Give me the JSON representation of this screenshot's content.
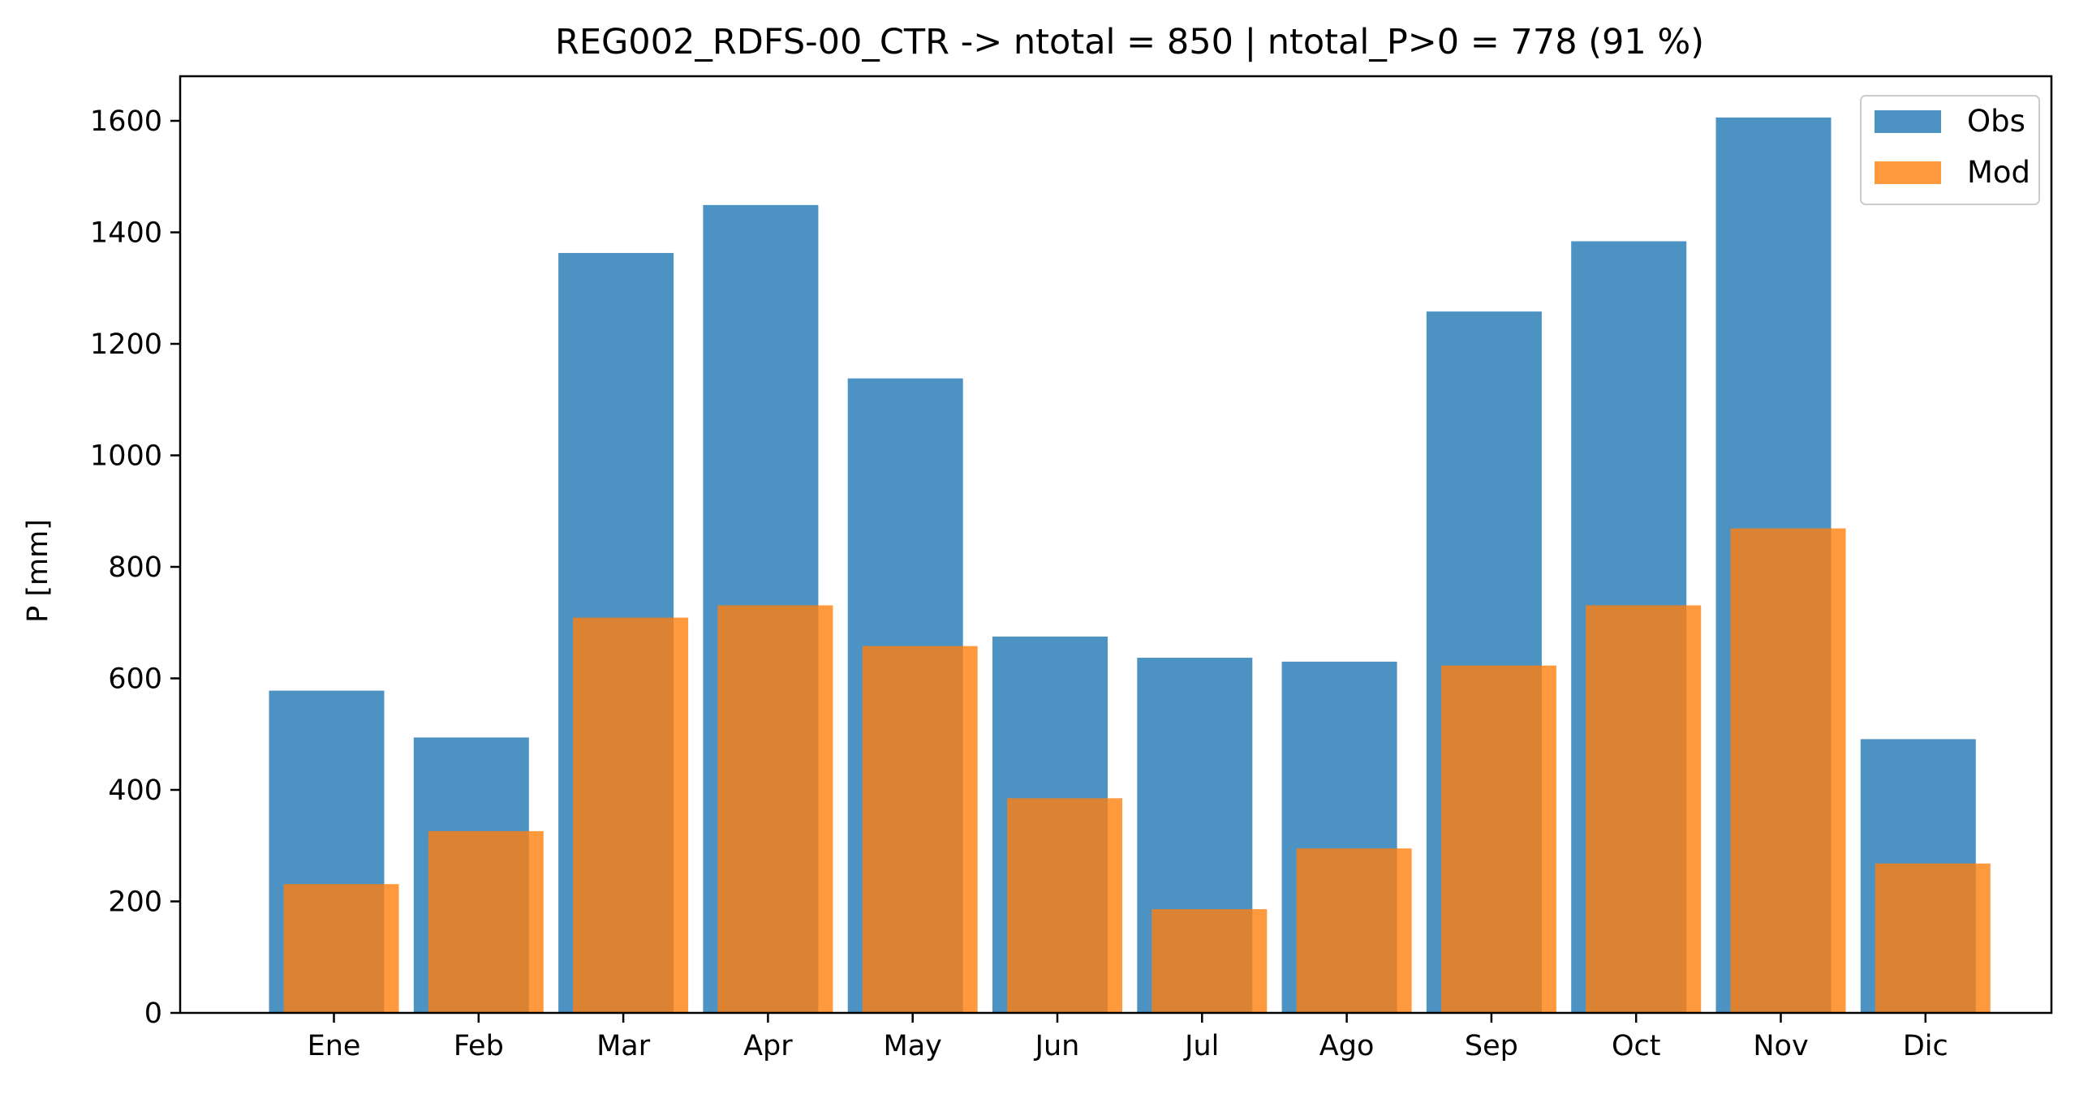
{
  "chart_data": {
    "type": "bar",
    "title": "REG002_RDFS-00_CTR -> ntotal = 850 | ntotal_P>0 = 778 (91 %)",
    "xlabel": "",
    "ylabel": "P [mm]",
    "ylim": [
      0,
      1680
    ],
    "yticks": [
      0,
      200,
      400,
      600,
      800,
      1000,
      1200,
      1400,
      1600
    ],
    "categories": [
      "Ene",
      "Feb",
      "Mar",
      "Apr",
      "May",
      "Jun",
      "Jul",
      "Ago",
      "Sep",
      "Oct",
      "Nov",
      "Dic"
    ],
    "series": [
      {
        "name": "Obs",
        "color": "#1f77b4",
        "values": [
          578,
          494,
          1363,
          1449,
          1138,
          675,
          637,
          630,
          1258,
          1384,
          1606,
          491
        ]
      },
      {
        "name": "Mod",
        "color": "#ff7f0e",
        "values": [
          231,
          326,
          709,
          731,
          658,
          385,
          186,
          295,
          623,
          731,
          869,
          268
        ]
      }
    ],
    "legend_position": "top-right",
    "grid": false,
    "opacity": 0.8
  }
}
